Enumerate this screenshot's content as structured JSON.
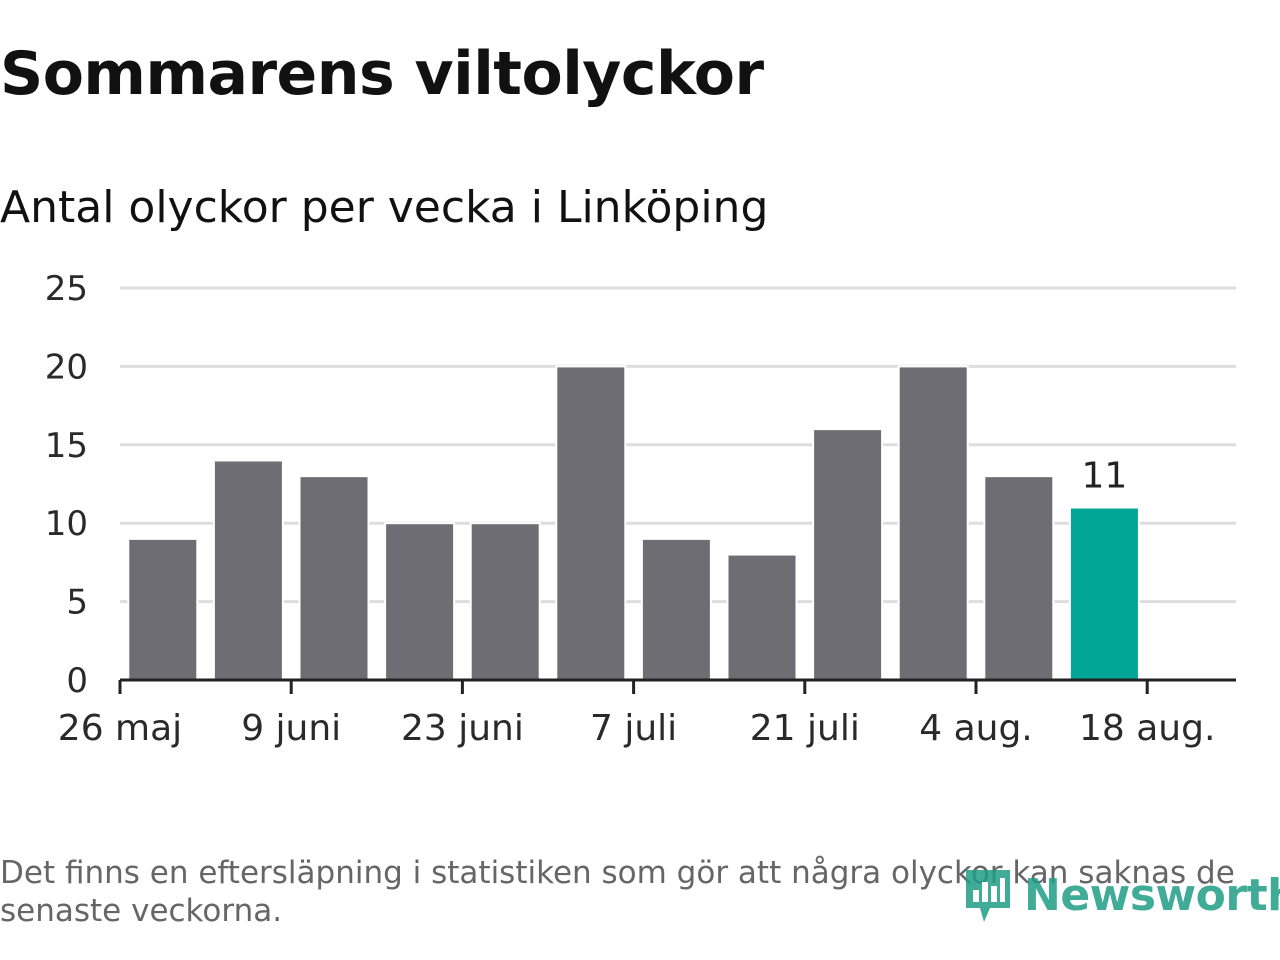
{
  "header": {
    "title": "Sommarens viltolyckor",
    "subtitle": "Antal olyckor per vecka i Linköping"
  },
  "chart_data": {
    "type": "bar",
    "title": "Sommarens viltolyckor",
    "subtitle": "Antal olyckor per vecka i Linköping",
    "x": [
      "2019-05-26",
      "2019-06-02",
      "2019-06-09",
      "2019-06-16",
      "2019-06-23",
      "2019-06-30",
      "2019-07-07",
      "2019-07-14",
      "2019-07-21",
      "2019-07-28",
      "2019-08-04",
      "2019-08-11",
      "2019-08-18"
    ],
    "values": [
      null,
      9,
      14,
      13,
      10,
      10,
      20,
      9,
      8,
      16,
      20,
      13,
      11
    ],
    "x_tick_labels": [
      {
        "index": 0,
        "label": "26 maj"
      },
      {
        "index": 2,
        "label": "9 juni"
      },
      {
        "index": 4,
        "label": "23 juni"
      },
      {
        "index": 6,
        "label": "7 juli"
      },
      {
        "index": 8,
        "label": "21 juli"
      },
      {
        "index": 10,
        "label": "4 aug."
      },
      {
        "index": 12,
        "label": "18 aug."
      }
    ],
    "bar_offset": -0.5,
    "y_ticks": [
      0,
      5,
      10,
      15,
      20,
      25
    ],
    "ylim": [
      0,
      25
    ],
    "grid": true,
    "highlight_index": 12,
    "annotations": [
      {
        "index": 12,
        "label": "11"
      }
    ],
    "colors": {
      "bar": "#6e6d73",
      "highlight": "#00a596",
      "grid": "#dddddd",
      "axis": "#222222"
    }
  },
  "footer": {
    "note": "Det finns en eftersläpning i statistiken som gör att några olyckor kan saknas de senaste veckorna.",
    "logo_text": "Newsworthy",
    "logo_icon": "newsworthy-logo-icon",
    "logo_color": "#1f9e86"
  }
}
